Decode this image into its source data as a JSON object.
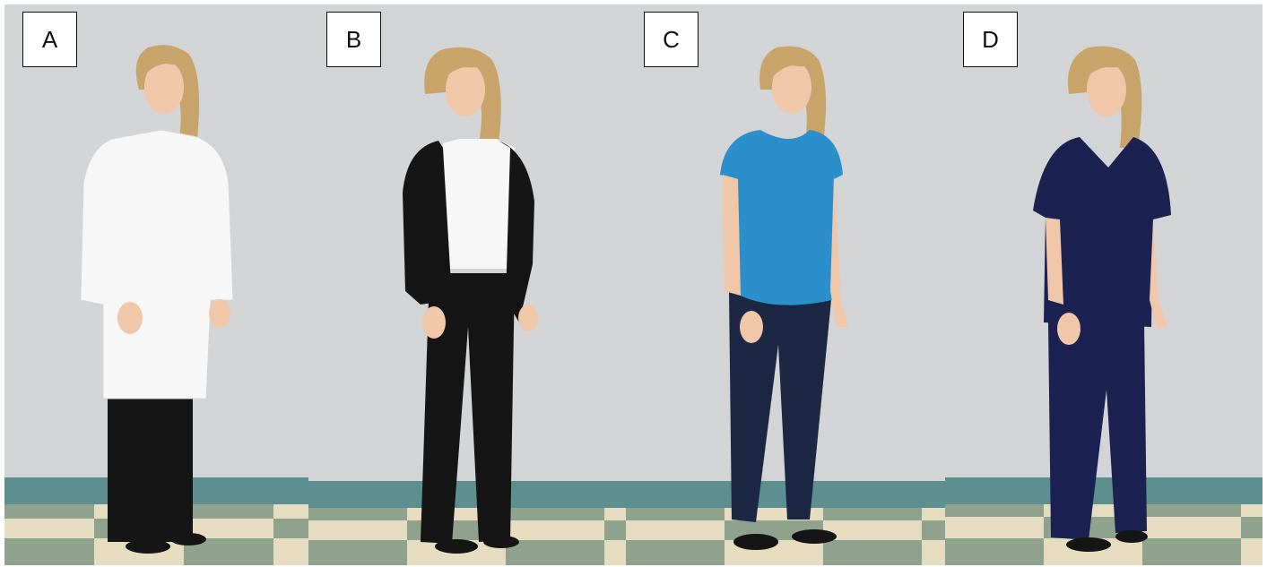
{
  "panels": [
    {
      "label": "A",
      "outfit": "white-coat"
    },
    {
      "label": "B",
      "outfit": "business-suit"
    },
    {
      "label": "C",
      "outfit": "casual"
    },
    {
      "label": "D",
      "outfit": "scrubs"
    }
  ],
  "colors": {
    "wall": "#d3d4d6",
    "baseboard": "#5d8f90",
    "floor_light": "#e6dcc0",
    "floor_dark": "#8fa28e",
    "hair": "#c9a46a",
    "skin": "#f0c7a8",
    "white_coat": "#f7f7f7",
    "black": "#151515",
    "blue_top": "#2b8fcc",
    "jeans": "#1c2744",
    "scrubs": "#1b2150"
  }
}
